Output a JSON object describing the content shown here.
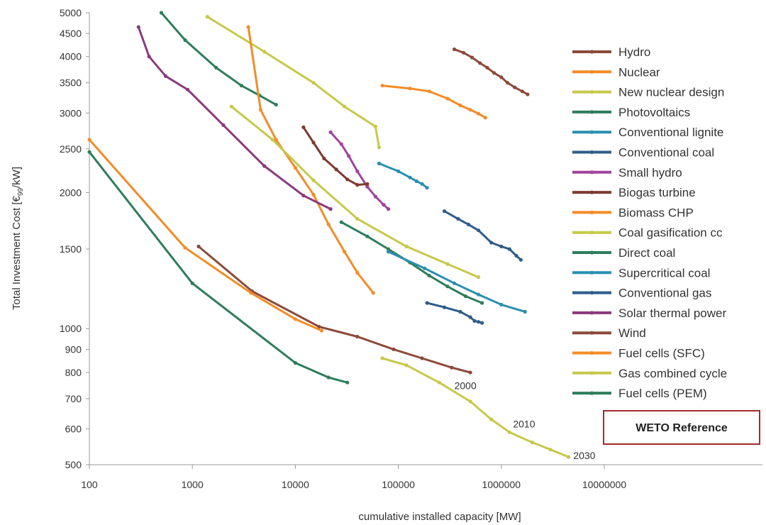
{
  "chart_data": {
    "type": "line",
    "xlabel": "cumulative installed capacity [MW]",
    "ylabel": "Total Investment Cost [€99/kW]",
    "ylabel_main": "Total Investment Cost [€",
    "ylabel_sub": "99",
    "ylabel_tail": "/kW]",
    "x_scale": "log",
    "y_scale": "log",
    "xlim": [
      100,
      30000000
    ],
    "ylim": [
      500,
      5000
    ],
    "x_ticks": [
      100,
      1000,
      10000,
      100000,
      1000000,
      10000000
    ],
    "x_tick_labels": [
      "100",
      "1000",
      "10000",
      "100000",
      "1000000",
      "10000000"
    ],
    "y_ticks": [
      500,
      600,
      700,
      800,
      900,
      1000,
      1500,
      2000,
      2500,
      3000,
      3500,
      4000,
      4500,
      5000
    ],
    "y_tick_labels": [
      "500",
      "600",
      "700",
      "800",
      "900",
      "1000",
      "1500",
      "2000",
      "2500",
      "3000",
      "3500",
      "4000",
      "4500",
      "5000"
    ],
    "grid": false,
    "legend_position": "right",
    "series": [
      {
        "name": "Hydro",
        "color": "#8B4A3A",
        "points": [
          [
            350000,
            4150
          ],
          [
            430000,
            4080
          ],
          [
            520000,
            3980
          ],
          [
            620000,
            3870
          ],
          [
            730000,
            3780
          ],
          [
            850000,
            3680
          ],
          [
            1000000,
            3600
          ],
          [
            1150000,
            3500
          ],
          [
            1350000,
            3420
          ],
          [
            1600000,
            3350
          ],
          [
            1800000,
            3300
          ]
        ]
      },
      {
        "name": "Nuclear",
        "color": "#F28C28",
        "points": [
          [
            70000,
            3450
          ],
          [
            130000,
            3400
          ],
          [
            200000,
            3350
          ],
          [
            300000,
            3230
          ],
          [
            400000,
            3120
          ],
          [
            500000,
            3050
          ],
          [
            600000,
            2990
          ],
          [
            700000,
            2930
          ]
        ]
      },
      {
        "name": "New nuclear design",
        "color": "#C5C94A",
        "points": [
          [
            1400,
            4900
          ],
          [
            5000,
            4100
          ],
          [
            15000,
            3500
          ],
          [
            30000,
            3100
          ],
          [
            60000,
            2800
          ],
          [
            65000,
            2520
          ]
        ]
      },
      {
        "name": "Photovoltaics",
        "color": "#2E7D5B",
        "points": [
          [
            500,
            5000
          ],
          [
            850,
            4350
          ],
          [
            1700,
            3780
          ],
          [
            3000,
            3450
          ],
          [
            4500,
            3280
          ],
          [
            6500,
            3130
          ]
        ]
      },
      {
        "name": "Conventional lignite",
        "color": "#2A8FB0",
        "points": [
          [
            65000,
            2320
          ],
          [
            100000,
            2230
          ],
          [
            130000,
            2160
          ],
          [
            150000,
            2120
          ],
          [
            170000,
            2090
          ],
          [
            190000,
            2050
          ]
        ]
      },
      {
        "name": "Conventional coal",
        "color": "#2F5D8A",
        "points": [
          [
            280000,
            1820
          ],
          [
            380000,
            1750
          ],
          [
            480000,
            1700
          ],
          [
            600000,
            1650
          ],
          [
            800000,
            1550
          ],
          [
            1000000,
            1520
          ],
          [
            1200000,
            1500
          ],
          [
            1400000,
            1450
          ],
          [
            1550000,
            1420
          ]
        ]
      },
      {
        "name": "Small hydro",
        "color": "#A0449E",
        "points": [
          [
            22000,
            2720
          ],
          [
            28000,
            2560
          ],
          [
            33000,
            2410
          ],
          [
            40000,
            2230
          ],
          [
            50000,
            2060
          ],
          [
            60000,
            1960
          ],
          [
            72000,
            1880
          ],
          [
            80000,
            1840
          ]
        ]
      },
      {
        "name": "Biogas turbine",
        "color": "#7E3A30",
        "points": [
          [
            12000,
            2790
          ],
          [
            15000,
            2580
          ],
          [
            19000,
            2380
          ],
          [
            25000,
            2250
          ],
          [
            32000,
            2140
          ],
          [
            40000,
            2080
          ],
          [
            50000,
            2090
          ]
        ]
      },
      {
        "name": "Biomass CHP",
        "color": "#F28C28",
        "points": [
          [
            3500,
            4650
          ],
          [
            4600,
            3050
          ],
          [
            6500,
            2620
          ],
          [
            10000,
            2270
          ],
          [
            15000,
            1980
          ],
          [
            21000,
            1700
          ],
          [
            30000,
            1480
          ],
          [
            40000,
            1330
          ],
          [
            57000,
            1200
          ]
        ]
      },
      {
        "name": "Coal gasification cc",
        "color": "#C5C94A",
        "points": [
          [
            2400,
            3100
          ],
          [
            6000,
            2620
          ],
          [
            15000,
            2130
          ],
          [
            40000,
            1750
          ],
          [
            120000,
            1520
          ],
          [
            300000,
            1390
          ],
          [
            600000,
            1300
          ]
        ]
      },
      {
        "name": "Direct coal",
        "color": "#2E7D5B",
        "points": [
          [
            28000,
            1720
          ],
          [
            50000,
            1600
          ],
          [
            80000,
            1500
          ],
          [
            130000,
            1400
          ],
          [
            200000,
            1310
          ],
          [
            300000,
            1240
          ],
          [
            450000,
            1180
          ],
          [
            650000,
            1140
          ]
        ]
      },
      {
        "name": "Supercritical coal",
        "color": "#2A8FB0",
        "points": [
          [
            80000,
            1480
          ],
          [
            180000,
            1360
          ],
          [
            350000,
            1260
          ],
          [
            600000,
            1190
          ],
          [
            1000000,
            1130
          ],
          [
            1700000,
            1090
          ]
        ]
      },
      {
        "name": "Conventional gas",
        "color": "#2F5D8A",
        "points": [
          [
            190000,
            1140
          ],
          [
            280000,
            1115
          ],
          [
            400000,
            1090
          ],
          [
            500000,
            1060
          ],
          [
            550000,
            1040
          ],
          [
            600000,
            1035
          ],
          [
            650000,
            1030
          ]
        ]
      },
      {
        "name": "Solar thermal power",
        "color": "#8B3A7E",
        "points": [
          [
            300,
            4650
          ],
          [
            380,
            4000
          ],
          [
            550,
            3620
          ],
          [
            900,
            3380
          ],
          [
            2000,
            2820
          ],
          [
            5000,
            2290
          ],
          [
            12000,
            1970
          ],
          [
            22000,
            1840
          ]
        ]
      },
      {
        "name": "Wind",
        "color": "#8B4A3A",
        "points": [
          [
            1150,
            1520
          ],
          [
            3800,
            1210
          ],
          [
            17000,
            1010
          ],
          [
            40000,
            960
          ],
          [
            90000,
            900
          ],
          [
            170000,
            860
          ],
          [
            330000,
            820
          ],
          [
            500000,
            800
          ]
        ]
      },
      {
        "name": "Fuel cells (SFC)",
        "color": "#F28C28",
        "points": [
          [
            100,
            2620
          ],
          [
            850,
            1510
          ],
          [
            3700,
            1200
          ],
          [
            10000,
            1050
          ],
          [
            18000,
            990
          ]
        ]
      },
      {
        "name": "Gas combined cycle",
        "color": "#C5C94A",
        "points": [
          [
            70000,
            860
          ],
          [
            120000,
            830
          ],
          [
            250000,
            760
          ],
          [
            500000,
            690
          ],
          [
            800000,
            630
          ],
          [
            1200000,
            590
          ],
          [
            2000000,
            560
          ],
          [
            3000000,
            540
          ],
          [
            4500000,
            520
          ]
        ]
      },
      {
        "name": "Fuel cells (PEM)",
        "color": "#2E7D5B",
        "points": [
          [
            100,
            2460
          ],
          [
            1000,
            1260
          ],
          [
            10000,
            840
          ],
          [
            21000,
            780
          ],
          [
            32000,
            760
          ]
        ]
      }
    ],
    "annotations": [
      {
        "text": "2000",
        "x": 350000,
        "y": 735
      },
      {
        "text": "2010",
        "x": 1300000,
        "y": 605
      },
      {
        "text": "2030",
        "x": 5000000,
        "y": 515
      }
    ],
    "reference_box_label": "WETO Reference"
  }
}
